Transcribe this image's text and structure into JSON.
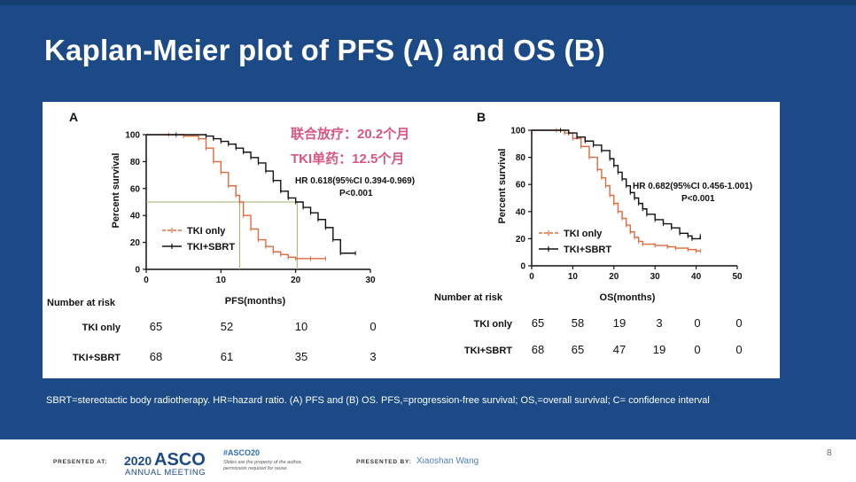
{
  "slide": {
    "title": "Kaplan-Meier plot of PFS (A) and OS (B)",
    "footnote": "SBRT=stereotactic body radiotherapy. HR=hazard ratio. (A) PFS and (B) OS. PFS,=progression-free survival; OS,=overall survival; C= confidence interval",
    "page_number": "8",
    "colors": {
      "background": "#1b4a86",
      "tki_only": "#e06a3e",
      "tki_sbrt": "#111111",
      "annotation": "#d9577f"
    }
  },
  "footer": {
    "presented_at_label": "PRESENTED AT:",
    "logo_year": "2020",
    "logo_name": "ASCO",
    "logo_sub": "ANNUAL MEETING",
    "hashtag": "#ASCO20",
    "note": "Slides are the property of the author, permission required for reuse.",
    "presented_by_label": "PRESENTED BY:",
    "presenter": "Xiaoshan Wang"
  },
  "chart_data": [
    {
      "panel": "A",
      "type": "line",
      "title": "",
      "xlabel": "PFS(months)",
      "ylabel": "Percent survival",
      "xlim": [
        0,
        30
      ],
      "ylim": [
        0,
        100
      ],
      "xticks": [
        0,
        10,
        20,
        30
      ],
      "yticks": [
        0,
        20,
        40,
        60,
        80,
        100
      ],
      "series": [
        {
          "name": "TKI only",
          "style": "dashed",
          "x": [
            0,
            3,
            5,
            7,
            8,
            9,
            10,
            11,
            12,
            12.5,
            13,
            14,
            15,
            16,
            17,
            18,
            19,
            20,
            22,
            24
          ],
          "y": [
            100,
            100,
            99,
            97,
            90,
            80,
            72,
            62,
            55,
            50,
            40,
            30,
            22,
            17,
            13,
            11,
            9,
            8,
            8,
            8
          ]
        },
        {
          "name": "TKI+SBRT",
          "style": "solid",
          "x": [
            0,
            4,
            8,
            9,
            10,
            11,
            12,
            13,
            14,
            15,
            16,
            17,
            18,
            19,
            20,
            21,
            22,
            23,
            24,
            25,
            26,
            28
          ],
          "y": [
            100,
            100,
            99,
            97,
            95,
            93,
            90,
            87,
            83,
            79,
            73,
            66,
            58,
            53,
            50,
            46,
            42,
            37,
            31,
            22,
            12,
            12
          ]
        }
      ],
      "median_guides": [
        12.5,
        20.2
      ],
      "legend": [
        "TKI only",
        "TKI+SBRT"
      ],
      "legend_position": "bottom-left",
      "annotations": {
        "hr": "HR 0.618(95%CI 0.394-0.969)",
        "p": "P<0.001",
        "cn_line1": "联合放疗：20.2个月",
        "cn_line2": "TKI单药：12.5个月"
      },
      "risk_table": {
        "header": "Number at risk",
        "rows": [
          {
            "label": "TKI only",
            "values": [
              "65",
              "52",
              "10",
              "0"
            ]
          },
          {
            "label": "TKI+SBRT",
            "values": [
              "68",
              "61",
              "35",
              "3"
            ]
          }
        ]
      }
    },
    {
      "panel": "B",
      "type": "line",
      "title": "",
      "xlabel": "OS(months)",
      "ylabel": "Percent survival",
      "xlim": [
        0,
        50
      ],
      "ylim": [
        0,
        100
      ],
      "xticks": [
        0,
        10,
        20,
        30,
        40,
        50
      ],
      "yticks": [
        0,
        20,
        40,
        60,
        80,
        100
      ],
      "series": [
        {
          "name": "TKI only",
          "style": "dashed",
          "x": [
            0,
            6,
            8,
            10,
            12,
            14,
            16,
            17,
            18,
            19,
            20,
            21,
            22,
            23,
            24,
            25,
            26,
            27,
            30,
            33,
            35,
            38,
            40,
            41
          ],
          "y": [
            100,
            100,
            98,
            94,
            88,
            80,
            71,
            65,
            59,
            52,
            46,
            40,
            35,
            30,
            25,
            21,
            18,
            16,
            15,
            14,
            13,
            12,
            11,
            11
          ]
        },
        {
          "name": "TKI+SBRT",
          "style": "solid",
          "x": [
            0,
            7,
            9,
            11,
            13,
            15,
            17,
            19,
            20,
            21,
            22,
            23,
            24,
            25,
            26,
            27,
            28,
            30,
            32,
            34,
            36,
            38,
            39,
            41
          ],
          "y": [
            100,
            100,
            98,
            95,
            92,
            89,
            85,
            79,
            74,
            69,
            64,
            59,
            54,
            50,
            46,
            42,
            38,
            34,
            31,
            28,
            24,
            22,
            20,
            22
          ]
        }
      ],
      "legend": [
        "TKI only",
        "TKI+SBRT"
      ],
      "legend_position": "bottom-left",
      "annotations": {
        "hr": "HR 0.682(95%CI 0.456-1.001)",
        "p": "P<0.001"
      },
      "risk_table": {
        "header": "Number at risk",
        "rows": [
          {
            "label": "TKI only",
            "values": [
              "65",
              "58",
              "19",
              "3",
              "0",
              "0"
            ]
          },
          {
            "label": "TKI+SBRT",
            "values": [
              "68",
              "65",
              "47",
              "19",
              "0",
              "0"
            ]
          }
        ]
      }
    }
  ]
}
